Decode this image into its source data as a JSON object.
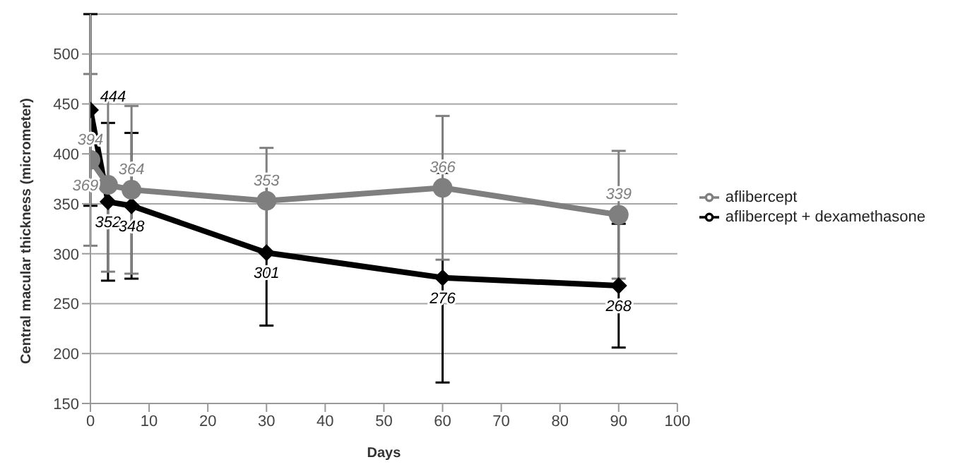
{
  "chart_data": {
    "type": "line",
    "xlabel": "Days",
    "ylabel": "Central macular thickness (micrometer)",
    "x": [
      0,
      3,
      7,
      30,
      60,
      90
    ],
    "series": [
      {
        "name": "aflibercept + dexamethasone",
        "color": "#000000",
        "marker": "diamond",
        "values": [
          444,
          352,
          348,
          301,
          276,
          268
        ],
        "errors": [
          96,
          79,
          73,
          73,
          105,
          62
        ]
      },
      {
        "name": "aflibercept",
        "color": "#7f7f7f",
        "marker": "circle",
        "values": [
          394,
          369,
          364,
          353,
          366,
          339
        ],
        "errors": [
          86,
          87,
          84,
          53,
          72,
          64
        ]
      }
    ],
    "xlim": [
      0,
      100
    ],
    "xticks": [
      0,
      10,
      20,
      30,
      40,
      50,
      60,
      70,
      80,
      90,
      100
    ],
    "ylim": [
      150,
      540
    ],
    "yticks": [
      150,
      200,
      250,
      300,
      350,
      400,
      450,
      500
    ],
    "grid": "y",
    "legend": "right",
    "data_labels": true
  }
}
